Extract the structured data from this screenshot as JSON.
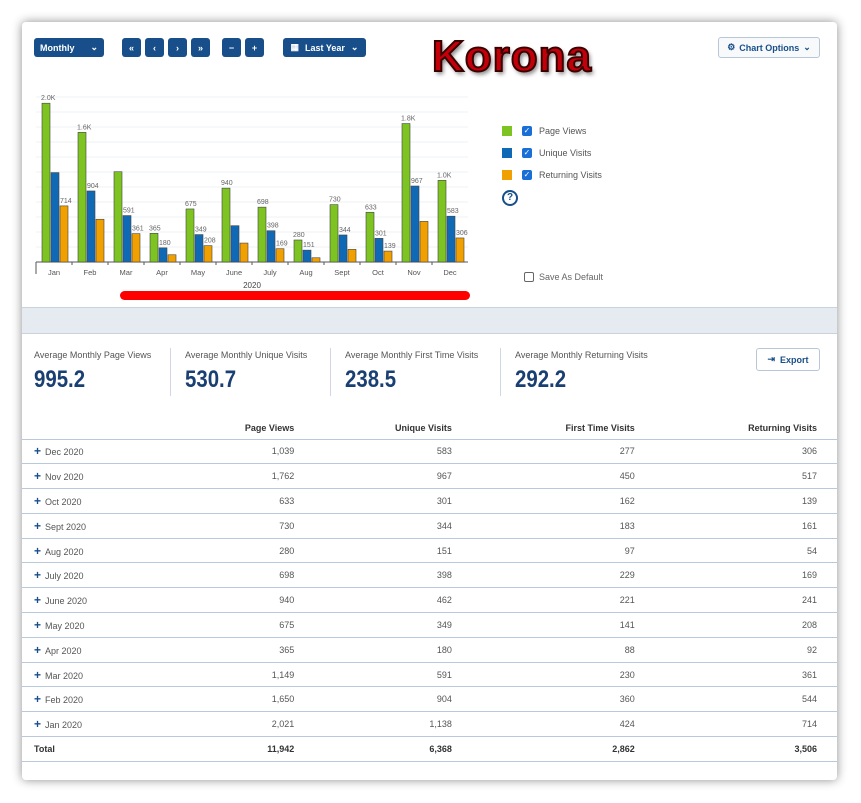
{
  "toolbar": {
    "period": "Monthly",
    "range": "Last Year",
    "first": "«",
    "prev": "‹",
    "next": "›",
    "last": "»",
    "zoom_out": "−",
    "zoom_in": "+",
    "chart_options": "Chart Options"
  },
  "logo": "Korona",
  "legend": [
    {
      "label": "Page Views",
      "color": "#7dc423"
    },
    {
      "label": "Unique Visits",
      "color": "#0f69b4"
    },
    {
      "label": "Returning Visits",
      "color": "#f0a000"
    }
  ],
  "help": "?",
  "save_default": "Save As Default",
  "chart_data": {
    "type": "bar",
    "xlabel": "2020",
    "categories": [
      "Jan",
      "Feb",
      "Mar",
      "Apr",
      "May",
      "June",
      "July",
      "Aug",
      "Sept",
      "Oct",
      "Nov",
      "Dec"
    ],
    "series": [
      {
        "name": "Page Views",
        "values": [
          2021,
          1650,
          1149,
          365,
          675,
          940,
          698,
          280,
          730,
          633,
          1762,
          1039
        ],
        "labels": [
          "2.0K",
          "1.6K",
          null,
          "365",
          "675",
          "940",
          "698",
          "280",
          "730",
          "633",
          "1.8K",
          "1.0K"
        ]
      },
      {
        "name": "Unique Visits",
        "values": [
          1138,
          904,
          591,
          180,
          349,
          462,
          398,
          151,
          344,
          301,
          967,
          583
        ],
        "labels": [
          null,
          "904",
          "591",
          "180",
          "349",
          null,
          "398",
          "151",
          "344",
          "301",
          "967",
          "583"
        ]
      },
      {
        "name": "Returning Visits",
        "values": [
          714,
          544,
          361,
          92,
          208,
          241,
          169,
          54,
          161,
          139,
          517,
          306
        ],
        "labels": [
          "714",
          null,
          "361",
          null,
          "208",
          null,
          "169",
          null,
          null,
          "139",
          null,
          "306"
        ]
      }
    ],
    "ylim": [
      0,
      2100
    ]
  },
  "stats": [
    {
      "label": "Average Monthly Page Views",
      "value": "995.2"
    },
    {
      "label": "Average Monthly Unique Visits",
      "value": "530.7"
    },
    {
      "label": "Average Monthly First Time Visits",
      "value": "238.5"
    },
    {
      "label": "Average Monthly Returning Visits",
      "value": "292.2"
    }
  ],
  "export": "Export",
  "table": {
    "headers": [
      "",
      "Page Views",
      "Unique Visits",
      "First Time Visits",
      "Returning Visits"
    ],
    "rows": [
      [
        "Dec 2020",
        "1,039",
        "583",
        "277",
        "306"
      ],
      [
        "Nov 2020",
        "1,762",
        "967",
        "450",
        "517"
      ],
      [
        "Oct 2020",
        "633",
        "301",
        "162",
        "139"
      ],
      [
        "Sept 2020",
        "730",
        "344",
        "183",
        "161"
      ],
      [
        "Aug 2020",
        "280",
        "151",
        "97",
        "54"
      ],
      [
        "July 2020",
        "698",
        "398",
        "229",
        "169"
      ],
      [
        "June 2020",
        "940",
        "462",
        "221",
        "241"
      ],
      [
        "May 2020",
        "675",
        "349",
        "141",
        "208"
      ],
      [
        "Apr 2020",
        "365",
        "180",
        "88",
        "92"
      ],
      [
        "Mar 2020",
        "1,149",
        "591",
        "230",
        "361"
      ],
      [
        "Feb 2020",
        "1,650",
        "904",
        "360",
        "544"
      ],
      [
        "Jan 2020",
        "2,021",
        "1,138",
        "424",
        "714"
      ]
    ],
    "total": [
      "Total",
      "11,942",
      "6,368",
      "2,862",
      "3,506"
    ]
  }
}
